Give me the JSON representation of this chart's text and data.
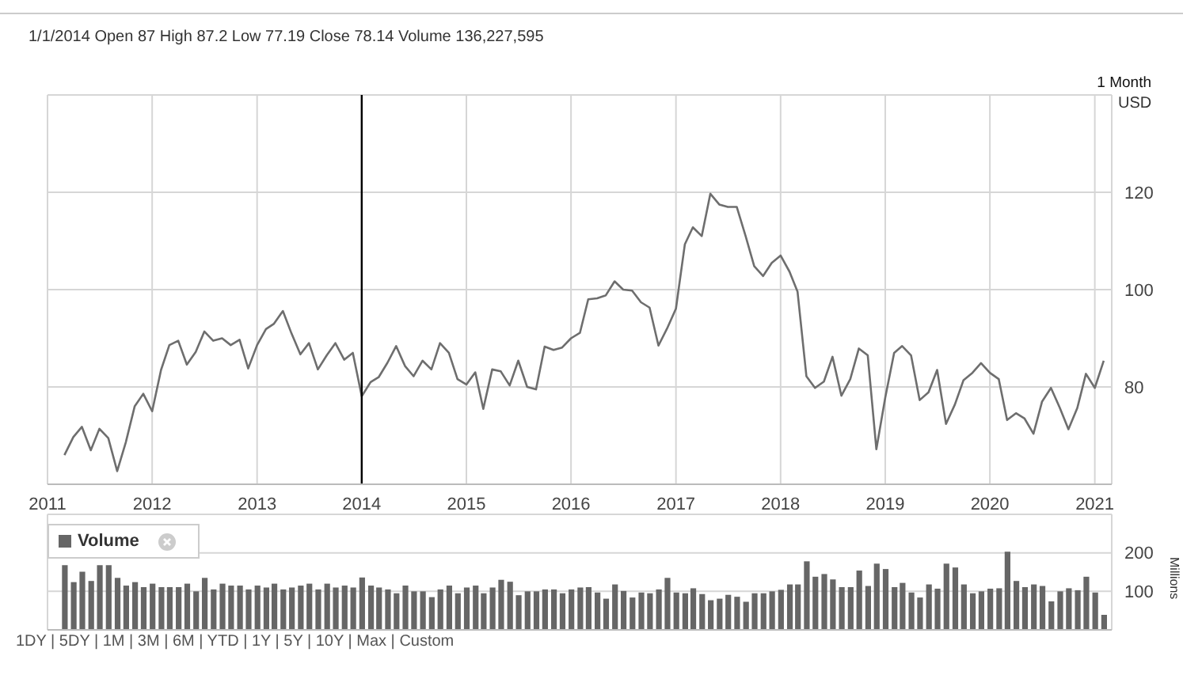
{
  "chart_data": [
    {
      "type": "line",
      "annotations": [
        "1/1/2014  Open 87  High 87.2  Low 77.19  Close 78.14  Volume 136,227,595",
        "1 Month"
      ],
      "ylabel": "USD",
      "color": "#6e6e6e",
      "x": [
        "2011-03",
        "2011-04",
        "2011-05",
        "2011-06",
        "2011-07",
        "2011-08",
        "2011-09",
        "2011-10",
        "2011-11",
        "2011-12",
        "2012-01",
        "2012-02",
        "2012-03",
        "2012-04",
        "2012-05",
        "2012-06",
        "2012-07",
        "2012-08",
        "2012-09",
        "2012-10",
        "2012-11",
        "2012-12",
        "2013-01",
        "2013-02",
        "2013-03",
        "2013-04",
        "2013-05",
        "2013-06",
        "2013-07",
        "2013-08",
        "2013-09",
        "2013-10",
        "2013-11",
        "2013-12",
        "2014-01",
        "2014-02",
        "2014-03",
        "2014-04",
        "2014-05",
        "2014-06",
        "2014-07",
        "2014-08",
        "2014-09",
        "2014-10",
        "2014-11",
        "2014-12",
        "2015-01",
        "2015-02",
        "2015-03",
        "2015-04",
        "2015-05",
        "2015-06",
        "2015-07",
        "2015-08",
        "2015-09",
        "2015-10",
        "2015-11",
        "2015-12",
        "2016-01",
        "2016-02",
        "2016-03",
        "2016-04",
        "2016-05",
        "2016-06",
        "2016-07",
        "2016-08",
        "2016-09",
        "2016-10",
        "2016-11",
        "2016-12",
        "2017-01",
        "2017-02",
        "2017-03",
        "2017-04",
        "2017-05",
        "2017-06",
        "2017-07",
        "2017-08",
        "2017-09",
        "2017-10",
        "2017-11",
        "2017-12",
        "2018-01",
        "2018-02",
        "2018-03",
        "2018-04",
        "2018-05",
        "2018-06",
        "2018-07",
        "2018-08",
        "2018-09",
        "2018-10",
        "2018-11",
        "2018-12",
        "2019-01",
        "2019-02",
        "2019-03",
        "2019-04",
        "2019-05",
        "2019-06",
        "2019-07",
        "2019-08",
        "2019-09",
        "2019-10",
        "2019-11",
        "2019-12",
        "2020-01",
        "2020-02",
        "2020-03",
        "2020-04",
        "2020-05",
        "2020-06",
        "2020-07",
        "2020-08",
        "2020-09",
        "2020-10",
        "2020-11",
        "2020-12",
        "2021-01",
        "2021-02"
      ],
      "values": [
        66,
        69.7,
        71.8,
        67,
        71.4,
        69.5,
        62.7,
        68.6,
        76,
        78.6,
        75,
        83.5,
        88.6,
        89.5,
        84.6,
        87.2,
        91.4,
        89.5,
        90,
        88.6,
        89.7,
        83.8,
        88.6,
        91.9,
        93,
        95.6,
        91,
        86.7,
        89,
        83.6,
        86.5,
        89,
        85.6,
        87,
        78.1,
        81,
        82,
        85,
        88.4,
        84.3,
        82.2,
        85.4,
        83.6,
        89,
        87,
        81.6,
        80.5,
        83,
        75.5,
        83.6,
        83.2,
        80.3,
        85.4,
        80,
        79.5,
        88.3,
        87.6,
        88.1,
        90,
        91.1,
        98,
        98.2,
        98.8,
        101.7,
        100,
        99.8,
        97.4,
        96.3,
        88.5,
        92,
        96.1,
        109.3,
        112.8,
        111,
        119.7,
        117.5,
        117,
        117,
        111,
        104.8,
        102.8,
        105.5,
        107,
        103.7,
        99.6,
        82.2,
        79.8,
        81.1,
        86.2,
        78.2,
        81.6,
        87.9,
        86.5,
        67.2,
        77.8,
        87,
        88.4,
        86.5,
        77.3,
        78.9,
        83.5,
        72.4,
        76.4,
        81.4,
        82.9,
        84.9,
        82.9,
        81.6,
        73.2,
        74.6,
        73.5,
        70.4,
        77,
        79.8,
        75.7,
        71.3,
        75.7,
        82.7,
        79.8,
        85.4
      ],
      "xlim": [
        "2011-01",
        "2021-03"
      ],
      "xticks": [
        "2011",
        "2012",
        "2013",
        "2014",
        "2015",
        "2016",
        "2017",
        "2018",
        "2019",
        "2020",
        "2021"
      ],
      "ylim": [
        60,
        140
      ],
      "yticks": [
        {
          "value": 60,
          "label": null
        },
        80,
        100,
        120
      ],
      "grid": true,
      "ref_lines": [
        {
          "axis": "x",
          "value": "2014-01",
          "color": "#000000"
        }
      ]
    },
    {
      "type": "bar",
      "ylabel": "Millions",
      "legend": "top left",
      "grid": true,
      "tick_labels": "y",
      "annotations": [
        "1DY | 5DY | 1M | 3M | 6M | YTD | 1Y | 5Y | 10Y | Max | Custom"
      ],
      "x": [
        "2011-03",
        "2011-04",
        "2011-05",
        "2011-06",
        "2011-07",
        "2011-08",
        "2011-09",
        "2011-10",
        "2011-11",
        "2011-12",
        "2012-01",
        "2012-02",
        "2012-03",
        "2012-04",
        "2012-05",
        "2012-06",
        "2012-07",
        "2012-08",
        "2012-09",
        "2012-10",
        "2012-11",
        "2012-12",
        "2013-01",
        "2013-02",
        "2013-03",
        "2013-04",
        "2013-05",
        "2013-06",
        "2013-07",
        "2013-08",
        "2013-09",
        "2013-10",
        "2013-11",
        "2013-12",
        "2014-01",
        "2014-02",
        "2014-03",
        "2014-04",
        "2014-05",
        "2014-06",
        "2014-07",
        "2014-08",
        "2014-09",
        "2014-10",
        "2014-11",
        "2014-12",
        "2015-01",
        "2015-02",
        "2015-03",
        "2015-04",
        "2015-05",
        "2015-06",
        "2015-07",
        "2015-08",
        "2015-09",
        "2015-10",
        "2015-11",
        "2015-12",
        "2016-01",
        "2016-02",
        "2016-03",
        "2016-04",
        "2016-05",
        "2016-06",
        "2016-07",
        "2016-08",
        "2016-09",
        "2016-10",
        "2016-11",
        "2016-12",
        "2017-01",
        "2017-02",
        "2017-03",
        "2017-04",
        "2017-05",
        "2017-06",
        "2017-07",
        "2017-08",
        "2017-09",
        "2017-10",
        "2017-11",
        "2017-12",
        "2018-01",
        "2018-02",
        "2018-03",
        "2018-04",
        "2018-05",
        "2018-06",
        "2018-07",
        "2018-08",
        "2018-09",
        "2018-10",
        "2018-11",
        "2018-12",
        "2019-01",
        "2019-02",
        "2019-03",
        "2019-04",
        "2019-05",
        "2019-06",
        "2019-07",
        "2019-08",
        "2019-09",
        "2019-10",
        "2019-11",
        "2019-12",
        "2020-01",
        "2020-02",
        "2020-03",
        "2020-04",
        "2020-05",
        "2020-06",
        "2020-07",
        "2020-08",
        "2020-09",
        "2020-10",
        "2020-11",
        "2020-12",
        "2021-01",
        "2021-02"
      ],
      "series": [
        {
          "name": "Volume",
          "color": "#666666",
          "values": [
            168,
            124,
            151,
            127,
            168,
            168,
            135,
            115,
            124,
            111,
            120,
            111,
            111,
            111,
            120,
            100,
            135,
            105,
            120,
            115,
            115,
            105,
            115,
            110,
            120,
            105,
            110,
            115,
            120,
            105,
            120,
            110,
            115,
            110,
            136,
            115,
            110,
            105,
            95,
            115,
            100,
            100,
            85,
            105,
            115,
            95,
            110,
            115,
            95,
            110,
            130,
            125,
            90,
            100,
            100,
            105,
            105,
            95,
            105,
            110,
            111,
            97,
            81,
            118,
            101,
            84,
            97,
            95,
            105,
            135,
            97,
            95,
            108,
            93,
            77,
            81,
            91,
            86,
            73,
            95,
            95,
            100,
            104,
            118,
            118,
            178,
            138,
            145,
            131,
            111,
            111,
            154,
            114,
            172,
            158,
            111,
            122,
            97,
            84,
            118,
            107,
            172,
            162,
            118,
            95,
            100,
            107,
            108,
            203,
            127,
            111,
            118,
            114,
            74,
            100,
            108,
            103,
            138,
            97,
            39
          ]
        }
      ],
      "xlim": [
        "2011-01",
        "2021-03"
      ],
      "xticks": [
        "2011",
        "2012",
        "2013",
        "2014",
        "2015",
        "2016",
        "2017",
        "2018",
        "2019",
        "2020",
        "2021"
      ],
      "ylim": [
        0,
        300
      ],
      "yticks": [
        100,
        200
      ]
    }
  ]
}
